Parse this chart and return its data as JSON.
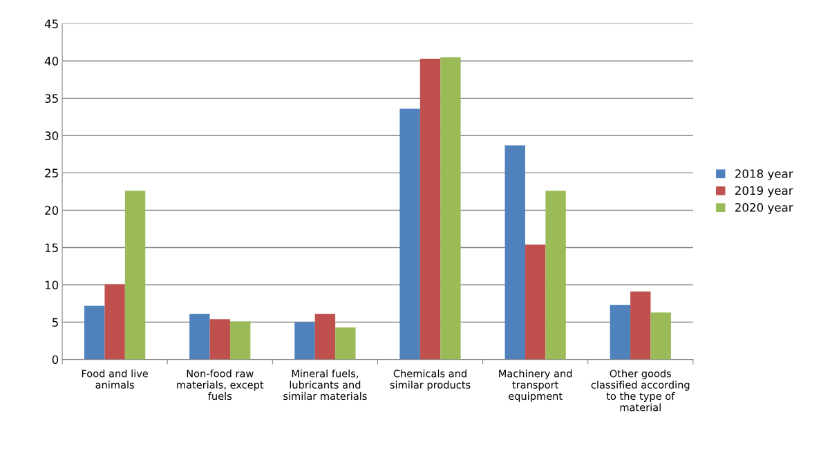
{
  "chart_data": {
    "type": "bar",
    "categories": [
      "Food and live animals",
      "Non-food raw materials, except fuels",
      "Mineral fuels, lubricants and similar materials",
      "Chemicals and similar products",
      "Machinery and transport equipment",
      "Other goods classified according to the type of material"
    ],
    "series": [
      {
        "name": "2018 year",
        "color": "#4f81bd",
        "values": [
          7.2,
          6.1,
          5.0,
          33.6,
          28.7,
          7.3
        ]
      },
      {
        "name": "2019 year",
        "color": "#c0504d",
        "values": [
          10.1,
          5.4,
          6.1,
          40.3,
          15.4,
          9.1
        ]
      },
      {
        "name": "2020 year",
        "color": "#9bbb59",
        "values": [
          22.6,
          5.1,
          4.3,
          40.5,
          22.6,
          6.3
        ]
      }
    ],
    "ylim": [
      0,
      45
    ],
    "yticks": [
      0,
      5,
      10,
      15,
      20,
      25,
      30,
      35,
      40,
      45
    ],
    "grid": "y",
    "legend": "right"
  }
}
